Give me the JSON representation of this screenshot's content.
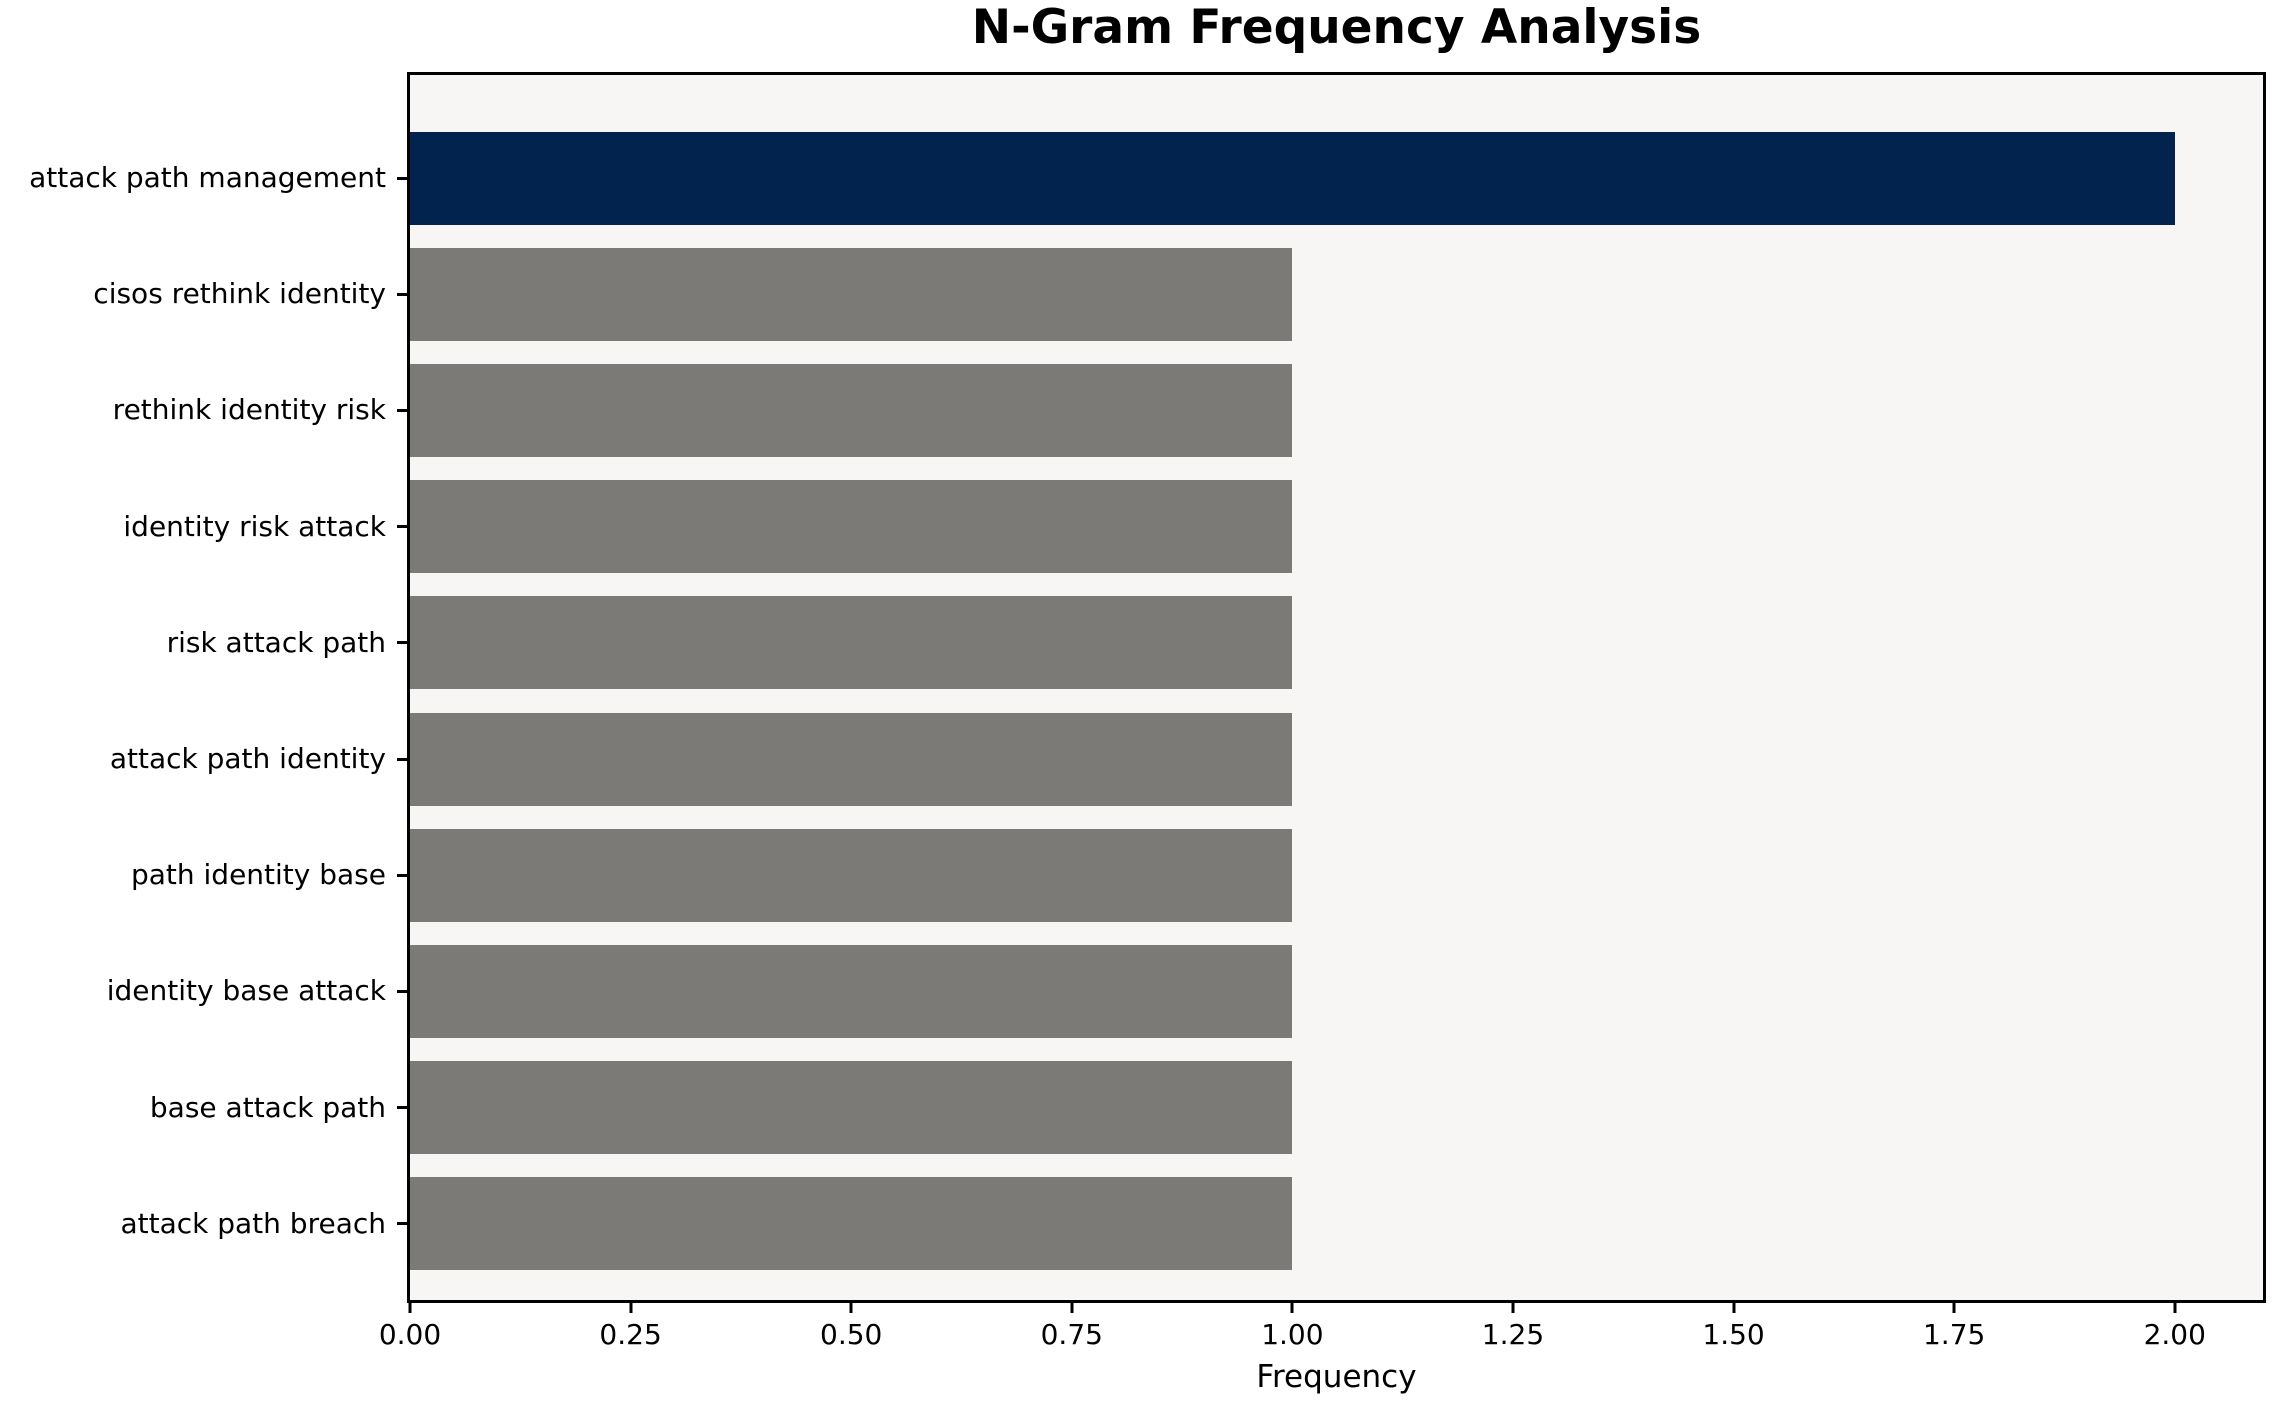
{
  "chart_data": {
    "type": "bar",
    "orientation": "horizontal",
    "title": "N-Gram Frequency Analysis",
    "xlabel": "Frequency",
    "ylabel": "",
    "categories": [
      "attack path management",
      "cisos rethink identity",
      "rethink identity risk",
      "identity risk attack",
      "risk attack path",
      "attack path identity",
      "path identity base",
      "identity base attack",
      "base attack path",
      "attack path breach"
    ],
    "values": [
      2,
      1,
      1,
      1,
      1,
      1,
      1,
      1,
      1,
      1
    ],
    "bar_colors": [
      "#02234d",
      "#7b7a76",
      "#7b7a76",
      "#7b7a76",
      "#7b7a76",
      "#7b7a76",
      "#7b7a76",
      "#7b7a76",
      "#7b7a76",
      "#7b7a76"
    ],
    "highlight_index": 0,
    "xlim": [
      0,
      2.1
    ],
    "xtick_values": [
      0,
      0.25,
      0.5,
      0.75,
      1.0,
      1.25,
      1.5,
      1.75,
      2.0
    ],
    "xtick_labels": [
      "0.00",
      "0.25",
      "0.50",
      "0.75",
      "1.00",
      "1.25",
      "1.50",
      "1.75",
      "2.00"
    ],
    "grid": false,
    "legend": null,
    "colors": {
      "highlight_bar": "#02234d",
      "default_bar": "#7b7a76",
      "plot_background": "#f7f6f5",
      "figure_background": "#ffffff",
      "spine": "#000000",
      "text": "#000000"
    }
  }
}
